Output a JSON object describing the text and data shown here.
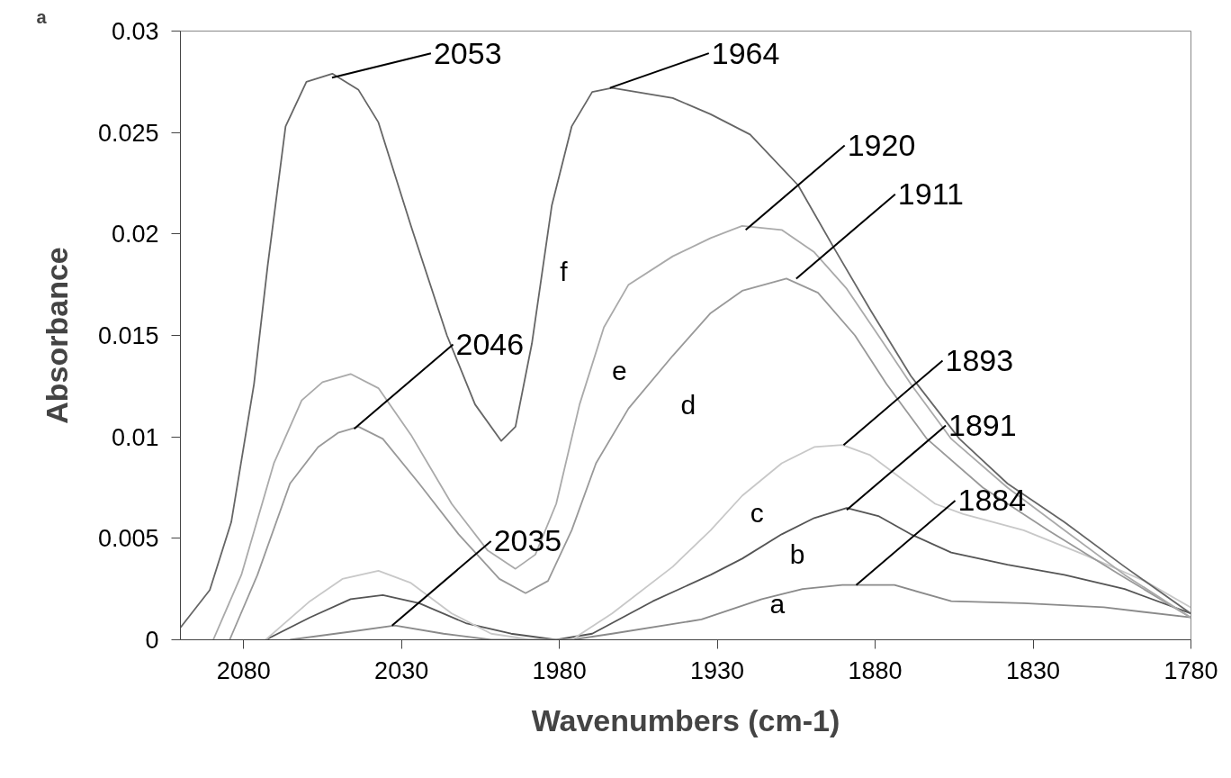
{
  "chart_data": {
    "type": "line",
    "xlabel": "Wavenumbers (cm-1)",
    "ylabel": "Absorbance",
    "xlim": [
      2100,
      1780
    ],
    "ylim": [
      0,
      0.03
    ],
    "xticks": [
      2080,
      2030,
      1980,
      1930,
      1880,
      1830,
      1780
    ],
    "yticks": [
      0,
      0.005,
      0.01,
      0.015,
      0.02,
      0.025,
      0.03
    ],
    "series": [
      {
        "name": "a",
        "color": "#8a8a8a",
        "x": [
          2065.3,
          2046.1,
          2032.1,
          2016.7,
          2001.6,
          1976.1,
          1963.3,
          1935.0,
          1915.9,
          1903.0,
          1890.4,
          1873.9,
          1855.9,
          1833.0,
          1807.6,
          1780.1
        ],
        "values": [
          0,
          0.0004,
          0.0007,
          0.0003,
          0,
          0,
          0.0003,
          0.001,
          0.002,
          0.0025,
          0.0027,
          0.0027,
          0.0019,
          0.0018,
          0.0016,
          0.0011
        ]
      },
      {
        "name": "b",
        "color": "#555555",
        "x": [
          2073.0,
          2059.0,
          2046.1,
          2035.9,
          2024.4,
          2009.3,
          1995.3,
          1981.0,
          1969.6,
          1950.4,
          1932.1,
          1922.1,
          1909.6,
          1899.3,
          1889.0,
          1879.0,
          1868.7,
          1855.9,
          1838.1,
          1820.1,
          1801.0,
          1780.1
        ],
        "values": [
          0,
          0.0011,
          0.002,
          0.0022,
          0.0018,
          0.0008,
          0.0003,
          0,
          0.0003,
          0.0019,
          0.0032,
          0.004,
          0.0052,
          0.006,
          0.0065,
          0.0061,
          0.0052,
          0.0043,
          0.0037,
          0.0032,
          0.0025,
          0.0013
        ]
      },
      {
        "name": "c",
        "color": "#c8c8c8",
        "x": [
          2073.0,
          2059.0,
          2048.7,
          2037.3,
          2027.0,
          2014.1,
          2001.6,
          1988.7,
          1976.1,
          1963.3,
          1944.1,
          1932.1,
          1922.1,
          1909.6,
          1899.3,
          1890.4,
          1881.6,
          1871.3,
          1861.0,
          1852.1,
          1833.0,
          1813.9,
          1794.7,
          1780.1
        ],
        "values": [
          0,
          0.0019,
          0.003,
          0.0034,
          0.0028,
          0.0013,
          0.0003,
          0,
          0,
          0.0013,
          0.0036,
          0.0054,
          0.0071,
          0.0087,
          0.0095,
          0.0096,
          0.0091,
          0.0079,
          0.0067,
          0.0062,
          0.0054,
          0.0042,
          0.0029,
          0.0016
        ]
      },
      {
        "name": "d",
        "color": "#999999",
        "x": [
          2084.4,
          2075.6,
          2065.3,
          2056.4,
          2050.1,
          2043.6,
          2035.9,
          2024.4,
          2011.9,
          1999.0,
          1990.7,
          1983.6,
          1976.1,
          1968.4,
          1958.1,
          1944.1,
          1932.1,
          1922.1,
          1908.1,
          1898.1,
          1886.4,
          1876.4,
          1863.6,
          1845.9,
          1825.3,
          1802.4,
          1780.1
        ],
        "values": [
          0,
          0.0032,
          0.0077,
          0.0095,
          0.0102,
          0.0105,
          0.0099,
          0.0077,
          0.0052,
          0.003,
          0.0023,
          0.0029,
          0.0054,
          0.0087,
          0.0114,
          0.014,
          0.0161,
          0.0172,
          0.0178,
          0.0171,
          0.015,
          0.0126,
          0.0099,
          0.0075,
          0.0054,
          0.0032,
          0.0011
        ]
      },
      {
        "name": "e",
        "color": "#aaaaaa",
        "x": [
          2089.6,
          2080.7,
          2070.4,
          2061.6,
          2055.0,
          2046.1,
          2037.3,
          2027.0,
          2014.1,
          2002.7,
          1993.9,
          1987.6,
          1981.0,
          1973.6,
          1965.9,
          1958.1,
          1944.1,
          1932.1,
          1922.1,
          1909.6,
          1899.3,
          1889.0,
          1879.0,
          1868.7,
          1855.9,
          1838.1,
          1820.1,
          1801.0,
          1780.1
        ],
        "values": [
          0,
          0.0032,
          0.0087,
          0.0118,
          0.0127,
          0.0131,
          0.0124,
          0.0101,
          0.0067,
          0.0044,
          0.0035,
          0.0042,
          0.0067,
          0.0116,
          0.0154,
          0.0175,
          0.0189,
          0.0198,
          0.0204,
          0.0202,
          0.0191,
          0.0173,
          0.015,
          0.0126,
          0.0099,
          0.0075,
          0.0054,
          0.0032,
          0.0011
        ]
      },
      {
        "name": "f",
        "color": "#666666",
        "x": [
          2100,
          2090.7,
          2083.9,
          2076.7,
          2072.4,
          2066.7,
          2060.1,
          2051.9,
          2043.6,
          2037.3,
          2027.0,
          2015.6,
          2006.7,
          1998.4,
          1993.9,
          1988.7,
          1982.4,
          1976.1,
          1969.6,
          1963.3,
          1944.1,
          1932.1,
          1919.6,
          1904.4,
          1893.0,
          1881.3,
          1868.7,
          1853.3,
          1838.1,
          1820.1,
          1801.0,
          1780.1
        ],
        "values": [
          0.0006,
          0.00245,
          0.0058,
          0.0126,
          0.0184,
          0.0253,
          0.0275,
          0.0279,
          0.0271,
          0.0255,
          0.0204,
          0.015,
          0.0116,
          0.0098,
          0.0105,
          0.0146,
          0.0214,
          0.0253,
          0.027,
          0.0272,
          0.0267,
          0.0259,
          0.0249,
          0.0224,
          0.0193,
          0.0162,
          0.013,
          0.0099,
          0.0077,
          0.0058,
          0.0036,
          0.0013
        ]
      }
    ],
    "annotations": [
      "a",
      {
        "text": "2053",
        "x": 2052,
        "y": 0.0277
      },
      {
        "text": "1964",
        "x": 1964,
        "y": 0.0272
      },
      {
        "text": "1920",
        "x": 1921,
        "y": 0.0202
      },
      {
        "text": "1911",
        "x": 1905,
        "y": 0.0178
      },
      {
        "text": "1893",
        "x": 1890,
        "y": 0.0096
      },
      {
        "text": "1891",
        "x": 1889,
        "y": 0.0064
      },
      {
        "text": "1884",
        "x": 1886,
        "y": 0.0027
      },
      {
        "text": "2046",
        "x": 2045,
        "y": 0.0104
      },
      {
        "text": "2035",
        "x": 2033,
        "y": 0.0007
      }
    ]
  }
}
